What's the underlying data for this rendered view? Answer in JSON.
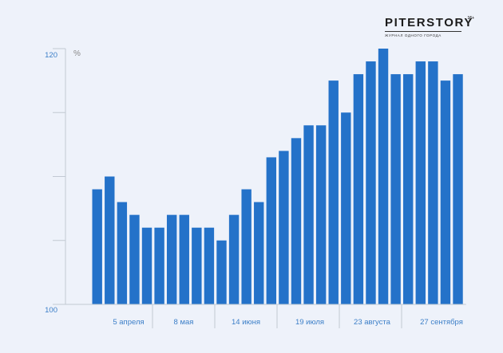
{
  "logo": {
    "name": "PITERSTORY",
    "sup": "16+",
    "tagline": "ЖУРНАЛ ОДНОГО ГОРОДА"
  },
  "colors": {
    "bar": "#2472c9",
    "axis": "#c2c9d3",
    "tick_text": "#3c7fc8"
  },
  "chart_data": {
    "type": "bar",
    "title": "",
    "xlabel": "",
    "ylabel": "%",
    "ylim": [
      100,
      120
    ],
    "y_tick_labels": [
      "120",
      "100"
    ],
    "grid": false,
    "x_labels": [
      "5 апреля",
      "8 мая",
      "14 июня",
      "19 июля",
      "23 августа",
      "27 сентября"
    ],
    "values": [
      109,
      110,
      108,
      107,
      106,
      106,
      107,
      107,
      106,
      106,
      105,
      107,
      109,
      108,
      111.5,
      112,
      113,
      114,
      114,
      117.5,
      115,
      118,
      119,
      120,
      118,
      118,
      119,
      119,
      117.5,
      118
    ]
  }
}
